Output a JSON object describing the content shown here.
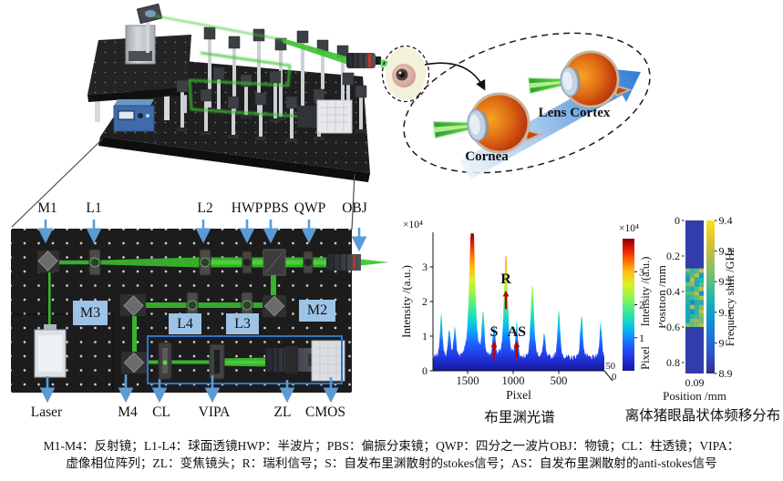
{
  "figure": {
    "inset": {
      "cornea_label": "Cornea",
      "lens_cortex_label": "Lens Cortex"
    },
    "schematic": {
      "top_labels": [
        "M1",
        "L1",
        "L2",
        "HWP",
        "PBS",
        "QWP",
        "OBJ"
      ],
      "box_labels": {
        "m3": "M3",
        "m2": "M2",
        "l4": "L4",
        "l3": "L3"
      },
      "bottom_labels": [
        "Laser",
        "M4",
        "CL",
        "VIPA",
        "ZL",
        "CMOS"
      ],
      "label_box_color": "#9dc3e6",
      "arrow_color": "#5b9bd5",
      "beam_color": "#38b52d",
      "spectrometer_outline_color": "#2e75c8"
    },
    "captions": {
      "line1": "M1-M4：反射镜；L1-L4：球面透镜HWP：半波片；PBS：偏振分束镜；QWP：四分之一波片OBJ：物镜；CL：柱透镜；VIPA：",
      "line2": "虚像相位阵列；ZL：变焦镜头；R：瑞利信号；S：自发布里渊散射的stokes信号；AS：自发布里渊散射的anti-stokes信号"
    }
  },
  "chart_data": [
    {
      "type": "area",
      "title": "布里渊光谱",
      "xlabel": "Pixel",
      "ylabel": "Intensity /(a.u.)",
      "y_scale": "×10⁴",
      "xlim": [
        1880,
        0
      ],
      "ylim": [
        0,
        4
      ],
      "x_ticks": [
        1500,
        1000,
        500
      ],
      "y_ticks": [
        0,
        1,
        2,
        3
      ],
      "x_axis_reversed": true,
      "depth_axis": {
        "label": "Pixel",
        "ticks": [
          50,
          0
        ]
      },
      "colorbar": {
        "label": "Intensity /(a.u.)",
        "scale": "×10⁴",
        "ticks": [
          1,
          2,
          3
        ],
        "colormap": "jet"
      },
      "baseline_noise_level": 0.45,
      "annotation_color": "#c00000",
      "peaks": [
        {
          "pixel": 1790,
          "height": 1.05
        },
        {
          "pixel": 1700,
          "height": 0.7
        },
        {
          "pixel": 1640,
          "height": 0.75
        },
        {
          "pixel": 1450,
          "height": 3.95
        },
        {
          "pixel": 1330,
          "height": 1.05
        },
        {
          "pixel": 1210,
          "height": 0.85
        },
        {
          "pixel": 1080,
          "height": 2.55
        },
        {
          "pixel": 962,
          "height": 0.85
        },
        {
          "pixel": 790,
          "height": 1.85
        },
        {
          "pixel": 660,
          "height": 0.6
        },
        {
          "pixel": 500,
          "height": 1.15
        },
        {
          "pixel": 250,
          "height": 1.05
        },
        {
          "pixel": 40,
          "height": 0.85
        }
      ],
      "annotations": [
        {
          "label": "S",
          "pixel": 1210,
          "label_value": 1.0,
          "arrow_from_value": 0.33,
          "arrow_to_value": 0.86
        },
        {
          "label": "R",
          "pixel": 1080,
          "label_value": 2.52,
          "arrow_from_value": 1.78,
          "arrow_to_value": 2.32
        },
        {
          "label": "AS",
          "pixel": 962,
          "label_value": 1.0,
          "arrow_from_value": 0.33,
          "arrow_to_value": 0.86
        }
      ]
    },
    {
      "type": "heatmap",
      "title": "离体猪眼晶状体频移分布",
      "xlabel": "Position /mm",
      "ylabel": "Position /mm",
      "x_ticks": [
        0.09
      ],
      "y_ticks": [
        0,
        0.2,
        0.4,
        0.6,
        0.8
      ],
      "strip_height_mm": 0.85,
      "colorbar": {
        "label": "Frequency shift /GHz",
        "ticks": [
          8.9,
          9,
          9.1,
          9.2,
          9.3,
          9.4
        ],
        "colormap": "parula"
      },
      "background_value_ghz": 8.93,
      "lens_region": {
        "from_mm": 0.27,
        "to_mm": 0.6,
        "mean_value_ghz": 9.19,
        "value_spread_ghz": 0.12
      }
    }
  ]
}
